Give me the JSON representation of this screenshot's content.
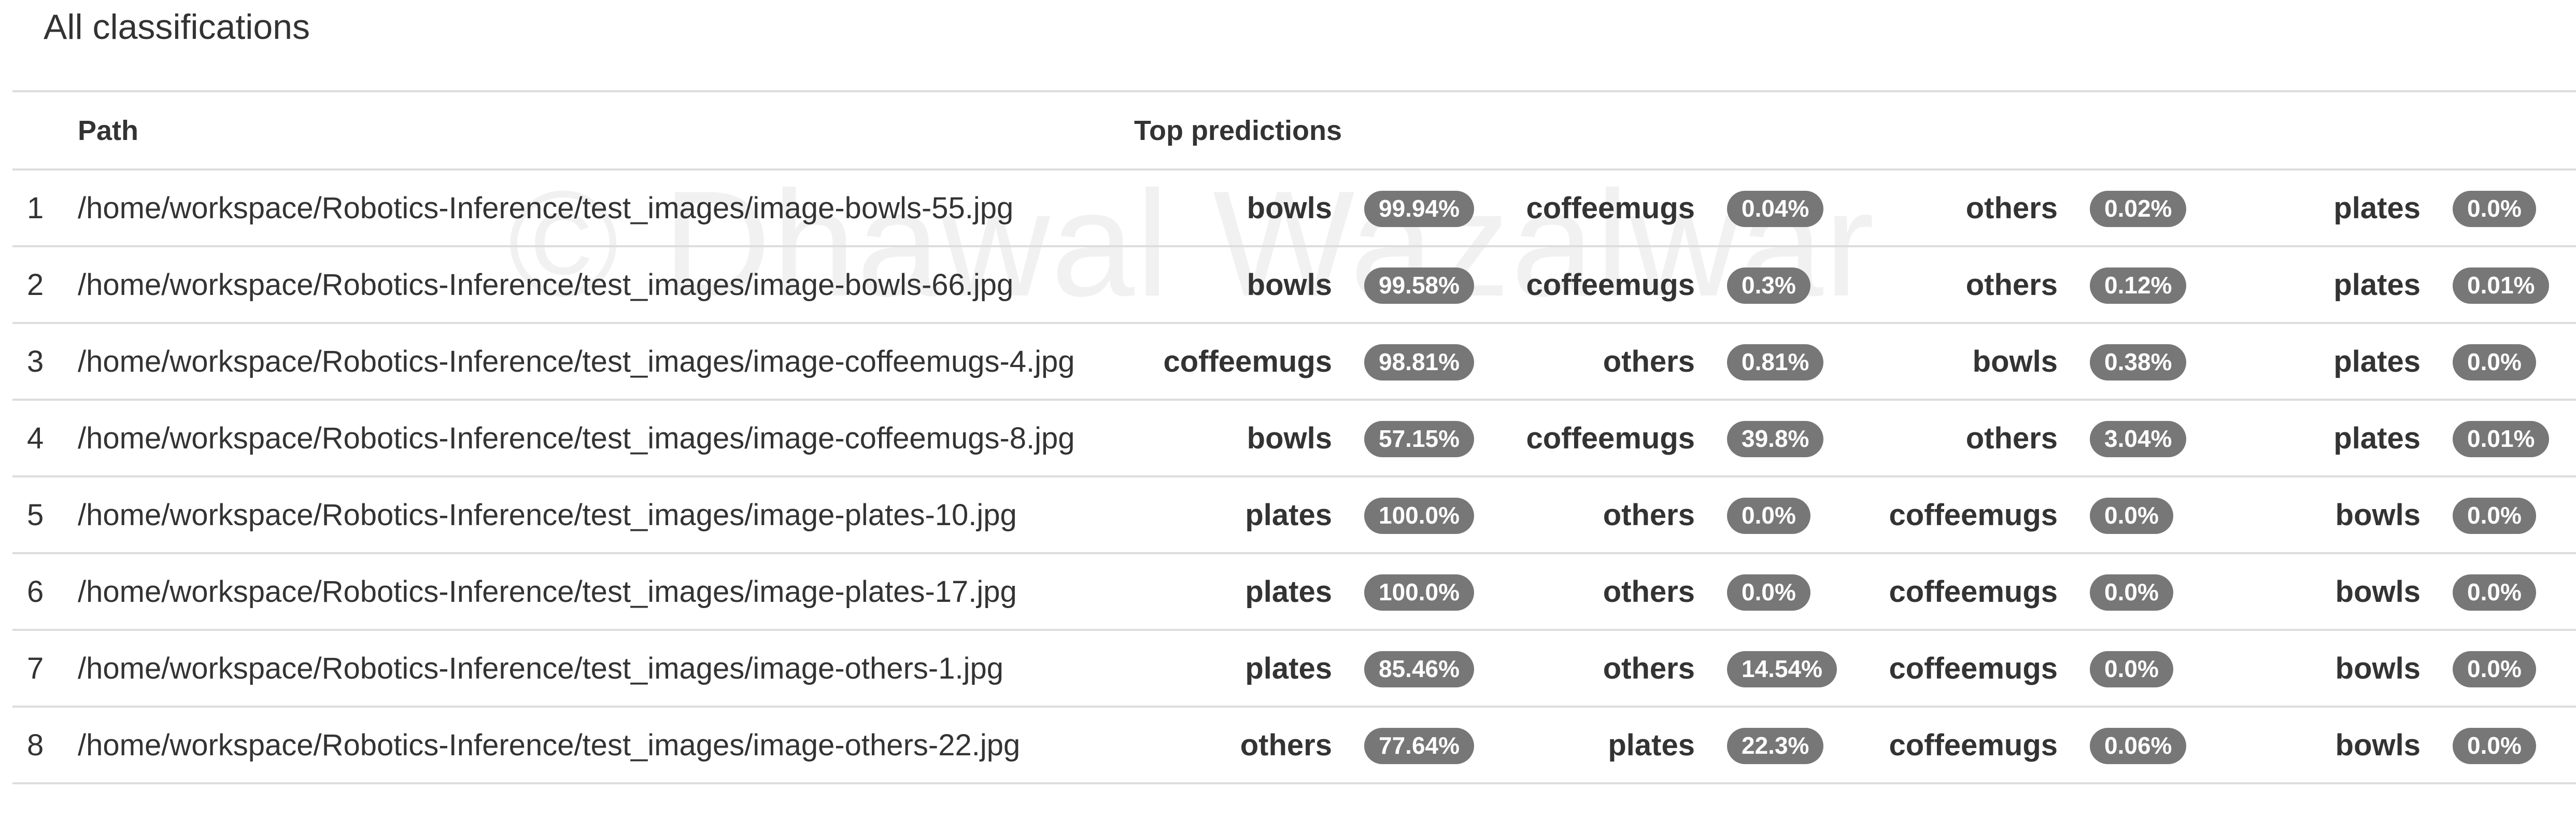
{
  "page": {
    "title": "All classifications",
    "watermark": "© Dhawal Wazalwar"
  },
  "table": {
    "columns": {
      "index": "",
      "path": "Path",
      "predictions": "Top predictions"
    },
    "rows": [
      {
        "index": "1",
        "path": "/home/workspace/Robotics-Inference/test_images/image-bowls-55.jpg",
        "predictions": [
          {
            "label": "bowls",
            "score": "99.94%"
          },
          {
            "label": "coffeemugs",
            "score": "0.04%"
          },
          {
            "label": "others",
            "score": "0.02%"
          },
          {
            "label": "plates",
            "score": "0.0%"
          }
        ]
      },
      {
        "index": "2",
        "path": "/home/workspace/Robotics-Inference/test_images/image-bowls-66.jpg",
        "predictions": [
          {
            "label": "bowls",
            "score": "99.58%"
          },
          {
            "label": "coffeemugs",
            "score": "0.3%"
          },
          {
            "label": "others",
            "score": "0.12%"
          },
          {
            "label": "plates",
            "score": "0.01%"
          }
        ]
      },
      {
        "index": "3",
        "path": "/home/workspace/Robotics-Inference/test_images/image-coffeemugs-4.jpg",
        "predictions": [
          {
            "label": "coffeemugs",
            "score": "98.81%"
          },
          {
            "label": "others",
            "score": "0.81%"
          },
          {
            "label": "bowls",
            "score": "0.38%"
          },
          {
            "label": "plates",
            "score": "0.0%"
          }
        ]
      },
      {
        "index": "4",
        "path": "/home/workspace/Robotics-Inference/test_images/image-coffeemugs-8.jpg",
        "predictions": [
          {
            "label": "bowls",
            "score": "57.15%"
          },
          {
            "label": "coffeemugs",
            "score": "39.8%"
          },
          {
            "label": "others",
            "score": "3.04%"
          },
          {
            "label": "plates",
            "score": "0.01%"
          }
        ]
      },
      {
        "index": "5",
        "path": "/home/workspace/Robotics-Inference/test_images/image-plates-10.jpg",
        "predictions": [
          {
            "label": "plates",
            "score": "100.0%"
          },
          {
            "label": "others",
            "score": "0.0%"
          },
          {
            "label": "coffeemugs",
            "score": "0.0%"
          },
          {
            "label": "bowls",
            "score": "0.0%"
          }
        ]
      },
      {
        "index": "6",
        "path": "/home/workspace/Robotics-Inference/test_images/image-plates-17.jpg",
        "predictions": [
          {
            "label": "plates",
            "score": "100.0%"
          },
          {
            "label": "others",
            "score": "0.0%"
          },
          {
            "label": "coffeemugs",
            "score": "0.0%"
          },
          {
            "label": "bowls",
            "score": "0.0%"
          }
        ]
      },
      {
        "index": "7",
        "path": "/home/workspace/Robotics-Inference/test_images/image-others-1.jpg",
        "predictions": [
          {
            "label": "plates",
            "score": "85.46%"
          },
          {
            "label": "others",
            "score": "14.54%"
          },
          {
            "label": "coffeemugs",
            "score": "0.0%"
          },
          {
            "label": "bowls",
            "score": "0.0%"
          }
        ]
      },
      {
        "index": "8",
        "path": "/home/workspace/Robotics-Inference/test_images/image-others-22.jpg",
        "predictions": [
          {
            "label": "others",
            "score": "77.64%"
          },
          {
            "label": "plates",
            "score": "22.3%"
          },
          {
            "label": "coffeemugs",
            "score": "0.06%"
          },
          {
            "label": "bowls",
            "score": "0.0%"
          }
        ]
      }
    ]
  },
  "colors": {
    "badge_background": "#777777",
    "badge_text": "#ffffff",
    "row_border": "#dddddd",
    "text": "#333333"
  }
}
